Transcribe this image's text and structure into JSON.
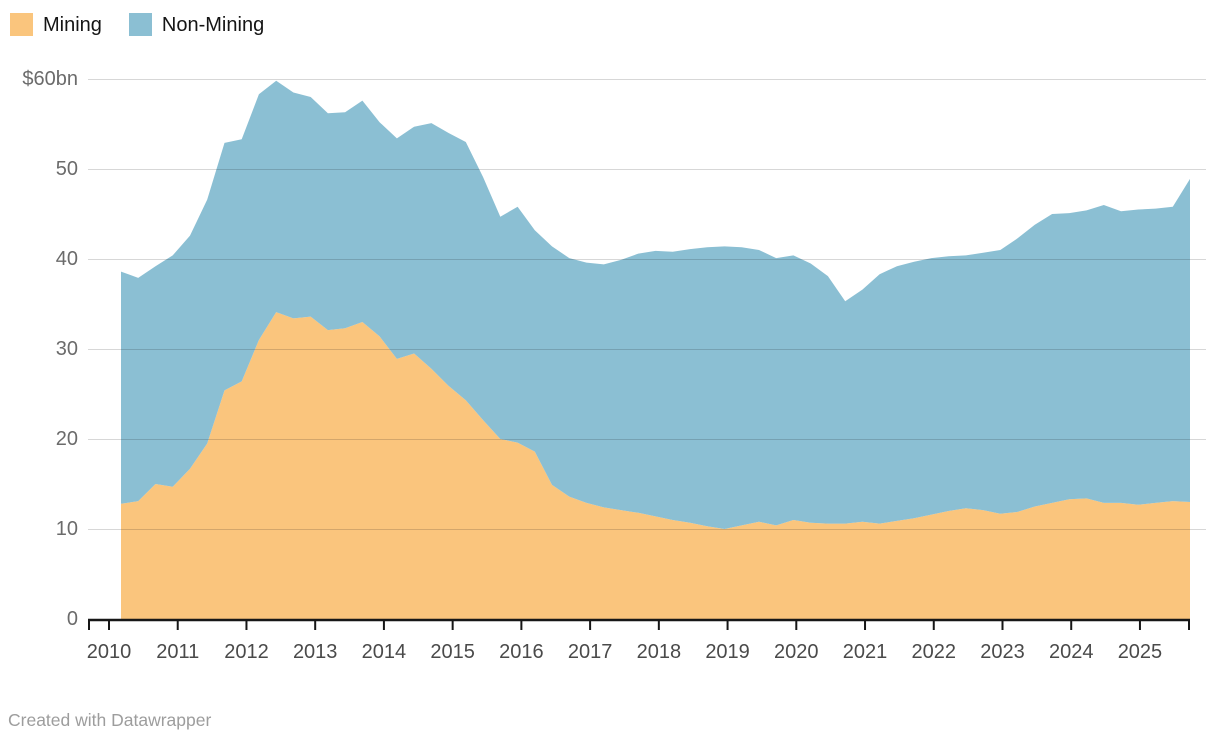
{
  "legend": {
    "items": [
      {
        "label": "Mining",
        "color": "#FAC57D"
      },
      {
        "label": "Non-Mining",
        "color": "#8BBFD3"
      }
    ]
  },
  "footer": {
    "text": "Created with Datawrapper"
  },
  "colors": {
    "mining_fill": "#FAC57D",
    "non_mining_fill": "#8BBFD3",
    "axis_line": "#171717",
    "grid_line_rgba": "rgba(20,20,20,0.17)",
    "y_label": "#6b6b6b",
    "x_label": "#4a4a4a"
  },
  "chart_data": {
    "type": "area",
    "stacked": true,
    "title": "",
    "unit": "$bn",
    "x_start_year": 2010.25,
    "x_step_years": 0.25,
    "x_tick_labels": [
      "2010",
      "2011",
      "2012",
      "2013",
      "2014",
      "2015",
      "2016",
      "2017",
      "2018",
      "2019",
      "2020",
      "2021",
      "2022",
      "2023",
      "2024",
      "2025"
    ],
    "y_axis": {
      "values": [
        60,
        50,
        40,
        30,
        20,
        10,
        0
      ],
      "labels": [
        "$60bn",
        "50",
        "40",
        "30",
        "20",
        "10",
        "0"
      ],
      "ylim": [
        0,
        60
      ],
      "grid": true
    },
    "legend_position": "top-left",
    "series": [
      {
        "name": "Mining",
        "color": "#FAC57D",
        "values": [
          12.8,
          13.1,
          15.0,
          14.7,
          16.7,
          19.5,
          25.4,
          26.4,
          31.0,
          34.1,
          33.4,
          33.6,
          32.1,
          32.3,
          33.0,
          31.4,
          28.9,
          29.5,
          27.8,
          25.9,
          24.3,
          22.1,
          20.0,
          19.6,
          18.6,
          14.9,
          13.6,
          12.9,
          12.4,
          12.1,
          11.8,
          11.4,
          11.0,
          10.7,
          10.3,
          10.0,
          10.4,
          10.8,
          10.4,
          11.0,
          10.7,
          10.6,
          10.6,
          10.8,
          10.6,
          10.9,
          11.2,
          11.6,
          12.0,
          12.3,
          12.1,
          11.7,
          11.9,
          12.5,
          12.9,
          13.3,
          13.4,
          12.9,
          12.9,
          12.7,
          12.9,
          13.1,
          13.0
        ]
      },
      {
        "name": "Non-Mining",
        "color": "#8BBFD3",
        "values": [
          25.8,
          24.8,
          24.2,
          25.7,
          25.9,
          27.1,
          27.5,
          26.9,
          27.3,
          25.7,
          25.1,
          24.4,
          24.1,
          24.0,
          24.6,
          23.8,
          24.5,
          25.2,
          27.3,
          28.1,
          28.7,
          27.0,
          24.7,
          26.2,
          24.6,
          26.5,
          26.5,
          26.7,
          27.0,
          27.8,
          28.8,
          29.5,
          29.8,
          30.4,
          31.0,
          31.4,
          30.9,
          30.2,
          29.7,
          29.4,
          28.8,
          27.5,
          24.7,
          25.8,
          27.7,
          28.3,
          28.5,
          28.5,
          28.3,
          28.1,
          28.6,
          29.3,
          30.4,
          31.3,
          32.1,
          31.8,
          32.0,
          33.1,
          32.4,
          32.8,
          32.7,
          32.7,
          35.9
        ]
      }
    ]
  }
}
